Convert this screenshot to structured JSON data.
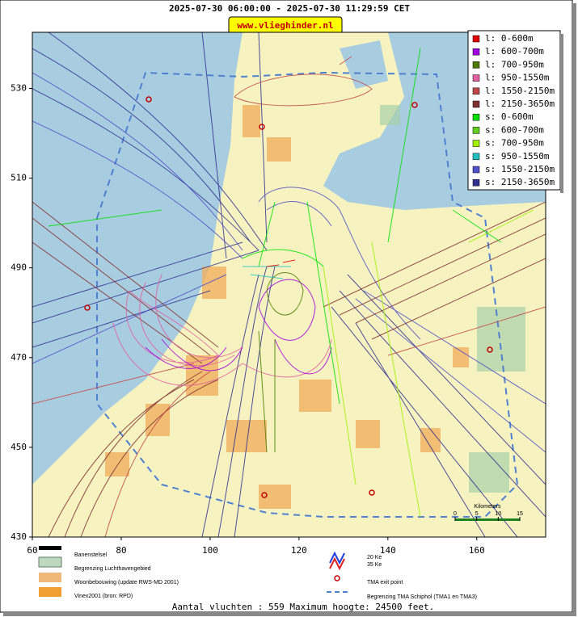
{
  "header": {
    "title": "2025-07-30 06:00:00 - 2025-07-30 11:29:59 CET",
    "site": "www.vlieghinder.nl"
  },
  "map": {
    "xlim": [
      60,
      175.5
    ],
    "ylim": [
      430,
      542.5
    ],
    "xticks": [
      60,
      80,
      100,
      120,
      140,
      160
    ],
    "yticks": [
      430,
      450,
      470,
      490,
      510,
      530
    ],
    "scale_bar": {
      "title": "Kilometers",
      "ticks": [
        0,
        5,
        10,
        15
      ]
    }
  },
  "legend": [
    {
      "label": "l: 0-600m",
      "color": "#e00000"
    },
    {
      "label": "l: 600-700m",
      "color": "#a000e0"
    },
    {
      "label": "l: 700-950m",
      "color": "#4a7a00"
    },
    {
      "label": "l: 950-1550m",
      "color": "#e060a0"
    },
    {
      "label": "l: 1550-2150m",
      "color": "#c04848"
    },
    {
      "label": "l: 2150-3650m",
      "color": "#803030"
    },
    {
      "label": "s: 0-600m",
      "color": "#00e000"
    },
    {
      "label": "s: 600-700m",
      "color": "#60d020"
    },
    {
      "label": "s: 700-950m",
      "color": "#a0f000"
    },
    {
      "label": "s: 950-1550m",
      "color": "#20c0c0"
    },
    {
      "label": "s: 1550-2150m",
      "color": "#5050c8"
    },
    {
      "label": "s: 2150-3650m",
      "color": "#303090"
    }
  ],
  "map_legend": {
    "runways": "Banenstelsel",
    "airport_boundary": "Begrenzing Luchthavengebied",
    "housing": "Woonbebouwing (update RWS-MD 2001)",
    "vinex": "Vinex2001 (bron: RPD)",
    "noise_20": "20 Ke",
    "noise_35": "35 Ke",
    "tma_exit": "TMA exit point",
    "tma_boundary": "Begrenzing TMA Schiphol  (TMA1 en TMA3)"
  },
  "footer": "Aantal vluchten : 559 Maximum hoogte: 24500 feet."
}
